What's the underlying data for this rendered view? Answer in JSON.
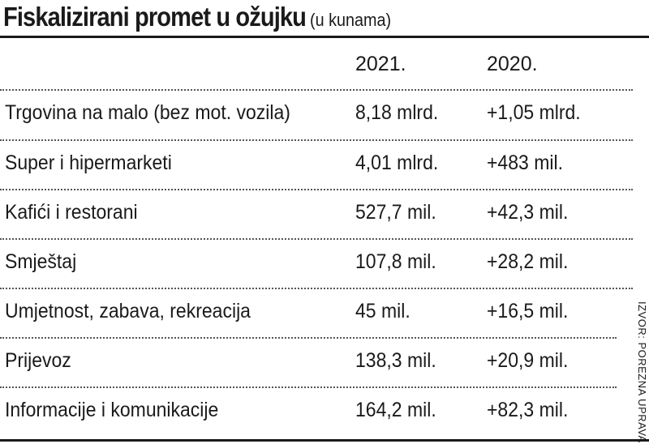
{
  "title": "Fiskalizirani promet u ožujku",
  "subtitle": "(u kunama)",
  "columns": {
    "label": "",
    "y2021": "2021.",
    "y2020": "2020."
  },
  "rows": [
    {
      "label": "Trgovina na malo (bez mot. vozila)",
      "y2021": "8,18 mlrd.",
      "y2020": "+1,05 mlrd."
    },
    {
      "label": "Super i hipermarketi",
      "y2021": "4,01 mlrd.",
      "y2020": "+483 mil."
    },
    {
      "label": "Kafići i restorani",
      "y2021": "527,7 mil.",
      "y2020": "+42,3 mil."
    },
    {
      "label": "Smještaj",
      "y2021": "107,8 mil.",
      "y2020": "+28,2 mil."
    },
    {
      "label": "Umjetnost, zabava, rekreacija",
      "y2021": "45 mil.",
      "y2020": "+16,5 mil."
    },
    {
      "label": "Prijevoz",
      "y2021": "138,3 mil.",
      "y2020": "+20,9 mil."
    },
    {
      "label": "Informacije i komunikacije",
      "y2021": "164,2 mil.",
      "y2020": "+82,3 mil."
    }
  ],
  "source": "IZVOR: POREZNA UPRAVA"
}
